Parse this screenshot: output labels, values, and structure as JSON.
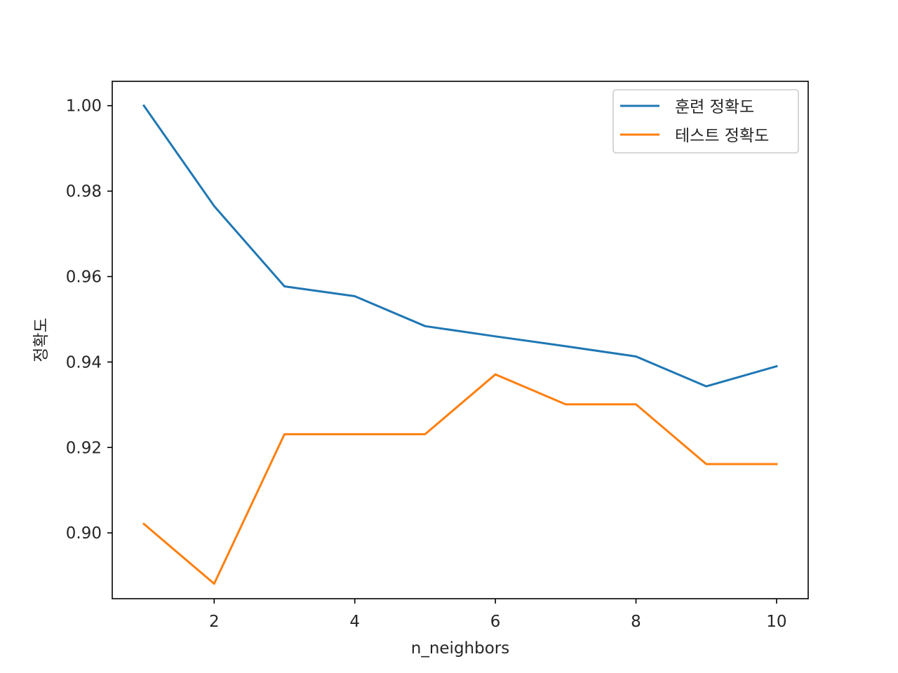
{
  "chart_data": {
    "type": "line",
    "title": "",
    "xlabel": "n_neighbors",
    "ylabel": "정확도",
    "x": [
      1,
      2,
      3,
      4,
      5,
      6,
      7,
      8,
      9,
      10
    ],
    "xlim": [
      0.55,
      10.45
    ],
    "ylim": [
      0.8846,
      1.0057
    ],
    "xticks": [
      2,
      4,
      6,
      8,
      10
    ],
    "xtick_labels": [
      "2",
      "4",
      "6",
      "8",
      "10"
    ],
    "yticks": [
      0.9,
      0.92,
      0.94,
      0.96,
      0.98,
      1.0
    ],
    "ytick_labels": [
      "0.90",
      "0.92",
      "0.94",
      "0.96",
      "0.98",
      "1.00"
    ],
    "grid": false,
    "legend_position": "top-right",
    "series": [
      {
        "name": "훈련 정확도",
        "color": "#1f77b4",
        "values": [
          1.0,
          0.9765,
          0.9577,
          0.9554,
          0.9484,
          0.946,
          0.9437,
          0.9413,
          0.9343,
          0.939
        ]
      },
      {
        "name": "테스트 정확도",
        "color": "#ff7f0e",
        "values": [
          0.9021,
          0.8881,
          0.9231,
          0.9231,
          0.9231,
          0.9371,
          0.9301,
          0.9301,
          0.9161,
          0.9161
        ]
      }
    ]
  }
}
